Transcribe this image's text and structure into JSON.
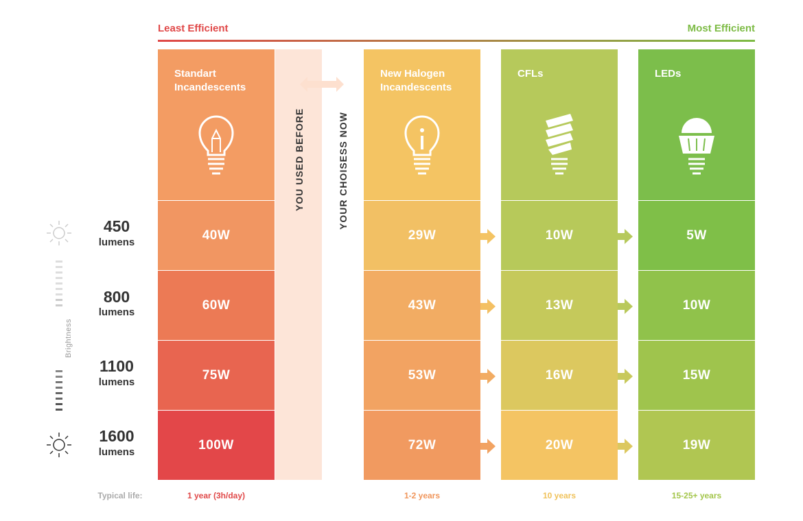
{
  "header": {
    "least_efficient": "Least Efficient",
    "most_efficient": "Most Efficient"
  },
  "labels": {
    "used_before": "YOU USED BEFORE",
    "choices_now": "YOUR CHOISESS NOW",
    "brightness": "Brightness",
    "typical_life": "Typical life:",
    "lumens_unit": "lumens"
  },
  "chart_data": {
    "type": "table",
    "rows": [
      "450",
      "800",
      "1100",
      "1600"
    ],
    "row_unit": "lumens",
    "columns": [
      {
        "name": "Standart Incandescents",
        "values": [
          "40W",
          "60W",
          "75W",
          "100W"
        ],
        "life": "1 year (3h/day)",
        "life_color": "#e04848"
      },
      {
        "name": "New Halogen Incandescents",
        "values": [
          "29W",
          "43W",
          "53W",
          "72W"
        ],
        "life": "1-2 years",
        "life_color": "#f0955a"
      },
      {
        "name": "CFLs",
        "values": [
          "10W",
          "13W",
          "16W",
          "20W"
        ],
        "life": "10 years",
        "life_color": "#f0c25a"
      },
      {
        "name": "LEDs",
        "values": [
          "5W",
          "10W",
          "15W",
          "19W"
        ],
        "life": "15-25+ years",
        "life_color": "#a3c54a"
      }
    ]
  },
  "colors": {
    "incandescent": [
      "#f39c63",
      "#f19662",
      "#ec7a55",
      "#e86550",
      "#e34749"
    ],
    "halogen": [
      "#f4c463",
      "#f2c064",
      "#f2ac63",
      "#f2a362",
      "#f19a60"
    ],
    "cfl": [
      "#b6c95b",
      "#b7c95a",
      "#c5c95b",
      "#dcc85f",
      "#f4c463"
    ],
    "led": [
      "#7cbe4b",
      "#7fbf48",
      "#90c24b",
      "#9fc44d",
      "#b0c652"
    ]
  },
  "icons": [
    "incandescent-bulb-icon",
    "halogen-bulb-icon",
    "cfl-bulb-icon",
    "led-bulb-icon",
    "sun-icon",
    "double-arrow-icon",
    "right-arrow-icon"
  ]
}
